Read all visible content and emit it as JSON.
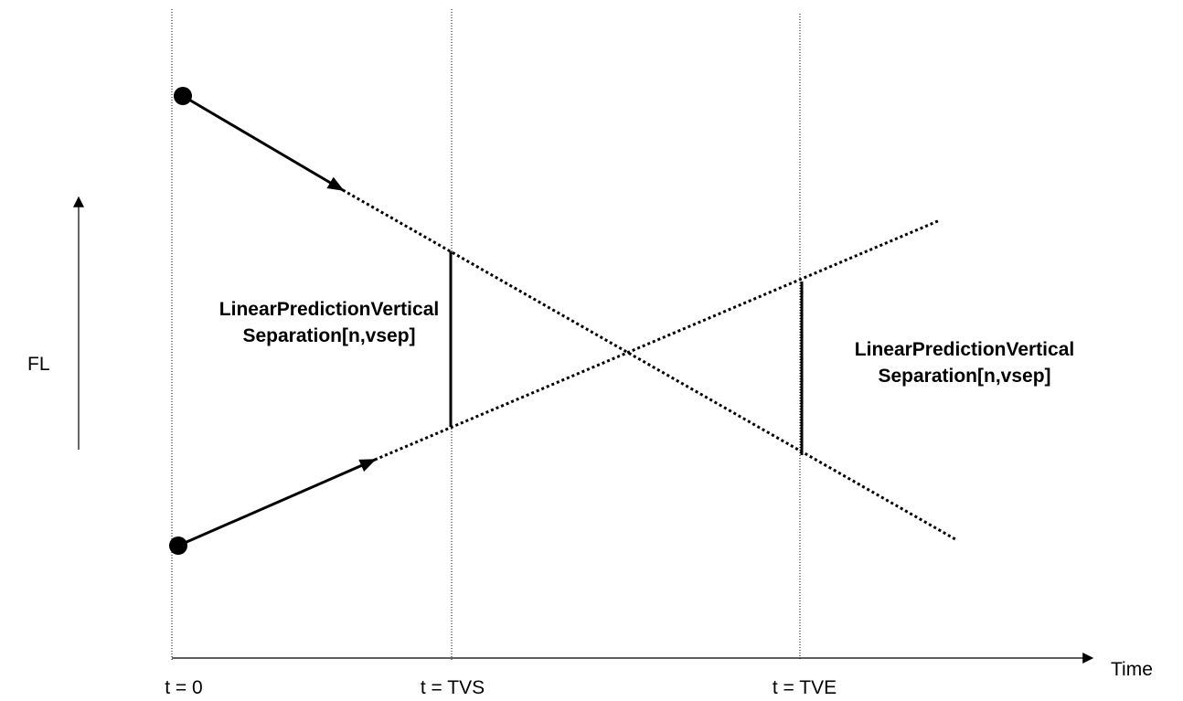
{
  "axes": {
    "y_label": "FL",
    "x_label": "Time"
  },
  "time_markers": [
    "t = 0",
    "t = TVS",
    "t = TVE"
  ],
  "annotations": [
    {
      "lines": [
        "LinearPredictionVertical",
        "Separation[n,vsep]"
      ]
    },
    {
      "lines": [
        "LinearPredictionVertical",
        "Separation[n,vsep]"
      ]
    }
  ]
}
